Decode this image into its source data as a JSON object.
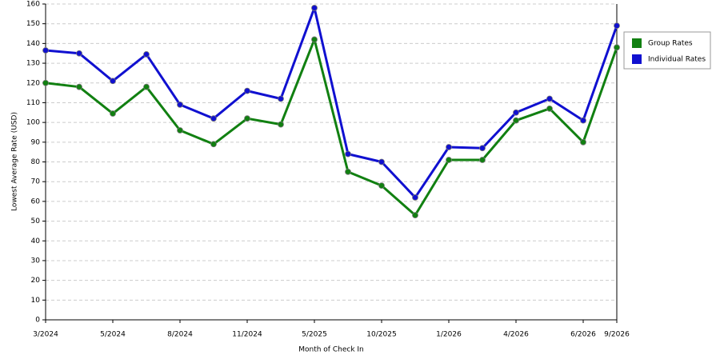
{
  "chart_data": {
    "type": "line",
    "x_label": "Month of Check In",
    "y_label": "Lowest Average Rate (USD)",
    "categories": [
      "3/2024",
      null,
      "5/2024",
      null,
      "8/2024",
      null,
      "11/2024",
      null,
      "5/2025",
      null,
      "10/2025",
      null,
      "1/2026",
      null,
      "4/2026",
      null,
      "6/2026",
      "9/2026"
    ],
    "series": [
      {
        "name": "Group Rates",
        "color": "#118011",
        "values": [
          120,
          118,
          104.5,
          118,
          96,
          89,
          102,
          99,
          142,
          75,
          68,
          53,
          81,
          81,
          101,
          107,
          90,
          138
        ]
      },
      {
        "name": "Individual Rates",
        "color": "#1010d0",
        "values": [
          136.5,
          135,
          121,
          134.5,
          109,
          102,
          116,
          112,
          158,
          84,
          80,
          62,
          87.5,
          87,
          105,
          112,
          101,
          149
        ]
      }
    ],
    "ylim": [
      0,
      160
    ],
    "yticks": [
      0,
      10,
      20,
      30,
      40,
      50,
      60,
      70,
      80,
      90,
      100,
      110,
      120,
      130,
      140,
      150,
      160
    ],
    "grid": true,
    "legend": "right"
  }
}
